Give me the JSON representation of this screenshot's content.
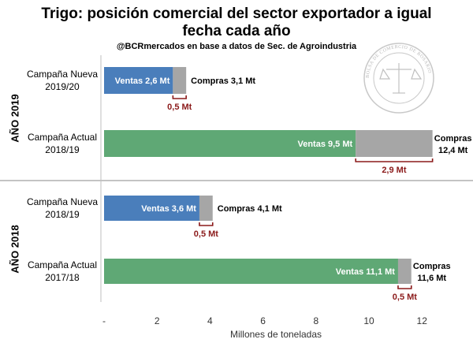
{
  "chart_data": {
    "type": "bar",
    "orientation": "horizontal",
    "stacked": true,
    "title_line1": "Trigo: posición comercial del sector exportador a igual",
    "title_line2": "fecha cada año",
    "subtitle": "@BCRmercados en base a datos de Sec. de Agroindustria",
    "xlabel": "Millones de toneladas",
    "xlim": [
      0,
      13
    ],
    "xticks": [
      0,
      2,
      4,
      6,
      8,
      10,
      12
    ],
    "xtick_labels": [
      "-",
      "2",
      "4",
      "6",
      "8",
      "10",
      "12"
    ],
    "groups": [
      {
        "label": "AÑO 2019",
        "rows": [
          {
            "category": [
              "Campaña Nueva",
              "2019/20"
            ],
            "ventas": 2.6,
            "compras": 3.1,
            "ventas_label": "Ventas 2,6 Mt",
            "compras_label": [
              "Compras 3,1 Mt"
            ],
            "gap_label": "0,5 Mt"
          },
          {
            "category": [
              "Campaña Actual",
              "2018/19"
            ],
            "ventas": 9.5,
            "compras": 12.4,
            "ventas_label": "Ventas 9,5 Mt",
            "compras_label": [
              "Compras",
              "12,4 Mt"
            ],
            "gap_label": "2,9 Mt"
          }
        ]
      },
      {
        "label": "AÑO 2018",
        "rows": [
          {
            "category": [
              "Campaña Nueva",
              "2018/19"
            ],
            "ventas": 3.6,
            "compras": 4.1,
            "ventas_label": "Ventas 3,6 Mt",
            "compras_label": [
              "Compras 4,1 Mt"
            ],
            "gap_label": "0,5 Mt"
          },
          {
            "category": [
              "Campaña Actual",
              "2017/18"
            ],
            "ventas": 11.1,
            "compras": 11.6,
            "ventas_label": "Ventas 11,1 Mt",
            "compras_label": [
              "Compras",
              "11,6 Mt"
            ],
            "gap_label": "0,5 Mt"
          }
        ]
      }
    ]
  },
  "colors": {
    "nueva": "#4a7ebb",
    "actual": "#5fa875",
    "gap": "#a6a6a6",
    "bracket": "#8b1a1a"
  },
  "seal": {
    "text": "BOLSA DE COMERCIO DE ROSARIO",
    "icon": "scales-of-justice-icon"
  }
}
